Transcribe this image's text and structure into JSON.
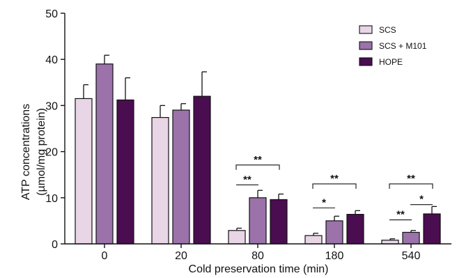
{
  "chart_data": {
    "type": "bar",
    "title": "",
    "xlabel": "Cold preservation time (min)",
    "ylabel_lines": [
      "ATP concentrations",
      "(µmol/mg protein)"
    ],
    "ylim": [
      0,
      50
    ],
    "yticks": [
      0,
      10,
      20,
      30,
      40,
      50
    ],
    "grid": false,
    "legend_position": "top-right",
    "categories": [
      "0",
      "20",
      "80",
      "180",
      "540"
    ],
    "series": [
      {
        "name": "SCS",
        "color": "#e8d5e6",
        "values": [
          31.5,
          27.4,
          2.9,
          1.8,
          0.8
        ],
        "errors": [
          3.0,
          2.6,
          0.5,
          0.5,
          0.3
        ]
      },
      {
        "name": "SCS + M101",
        "color": "#9b72aa",
        "values": [
          39.0,
          29.0,
          10.0,
          5.0,
          2.5
        ],
        "errors": [
          1.9,
          1.4,
          1.6,
          1.0,
          0.4
        ]
      },
      {
        "name": "HOPE",
        "color": "#4a0d4f",
        "values": [
          31.2,
          32.0,
          9.6,
          6.4,
          6.5
        ],
        "errors": [
          4.8,
          5.3,
          1.2,
          0.8,
          1.6
        ]
      }
    ],
    "annotations": [
      {
        "category": "80",
        "from_series": 0,
        "to_series": 2,
        "y": 17.1,
        "label": "**"
      },
      {
        "category": "80",
        "from_series": 0,
        "to_series": 1,
        "y": 12.8,
        "label": "**"
      },
      {
        "category": "180",
        "from_series": 0,
        "to_series": 2,
        "y": 13.0,
        "label": "**"
      },
      {
        "category": "180",
        "from_series": 0,
        "to_series": 1,
        "y": 7.8,
        "label": "*"
      },
      {
        "category": "540",
        "from_series": 0,
        "to_series": 2,
        "y": 13.0,
        "label": "**"
      },
      {
        "category": "540",
        "from_series": 0,
        "to_series": 1,
        "y": 5.2,
        "label": "**"
      },
      {
        "category": "540",
        "from_series": 1,
        "to_series": 2,
        "y": 8.5,
        "label": "*"
      }
    ]
  }
}
